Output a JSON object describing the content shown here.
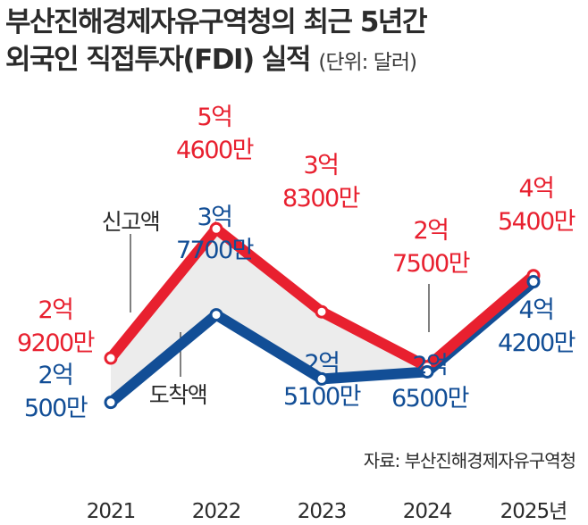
{
  "colors": {
    "red": "#e8202f",
    "blue": "#124e96",
    "fill": "#ececec",
    "leader": "#2b2b2b"
  },
  "chart_data": {
    "type": "line",
    "title_line1": "부산진해경제자유구역청의 최근 5년간",
    "title_line2": "외국인 직접투자(FDI) 실적",
    "unit": "(단위: 달러)",
    "source": "자료: 부산진해경제자유구역청",
    "categories": [
      "2021",
      "2022",
      "2023",
      "2024",
      "2025년"
    ],
    "series": [
      {
        "name": "신고액",
        "color": "#e8202f",
        "values": [
          292000000,
          546000000,
          383000000,
          275000000,
          454000000
        ],
        "labels": [
          [
            "2억",
            "9200만"
          ],
          [
            "5억",
            "4600만"
          ],
          [
            "3억",
            "8300만"
          ],
          [
            "2억",
            "7500만"
          ],
          [
            "4억",
            "5400만"
          ]
        ]
      },
      {
        "name": "도착액",
        "color": "#124e96",
        "values": [
          205000000,
          377000000,
          251000000,
          265000000,
          442000000
        ],
        "labels": [
          [
            "2억",
            "500만"
          ],
          [
            "3억",
            "7700만"
          ],
          [
            "2억",
            "5100만"
          ],
          [
            "2억",
            "6500만"
          ],
          [
            "4억",
            "4200만"
          ]
        ]
      }
    ]
  }
}
